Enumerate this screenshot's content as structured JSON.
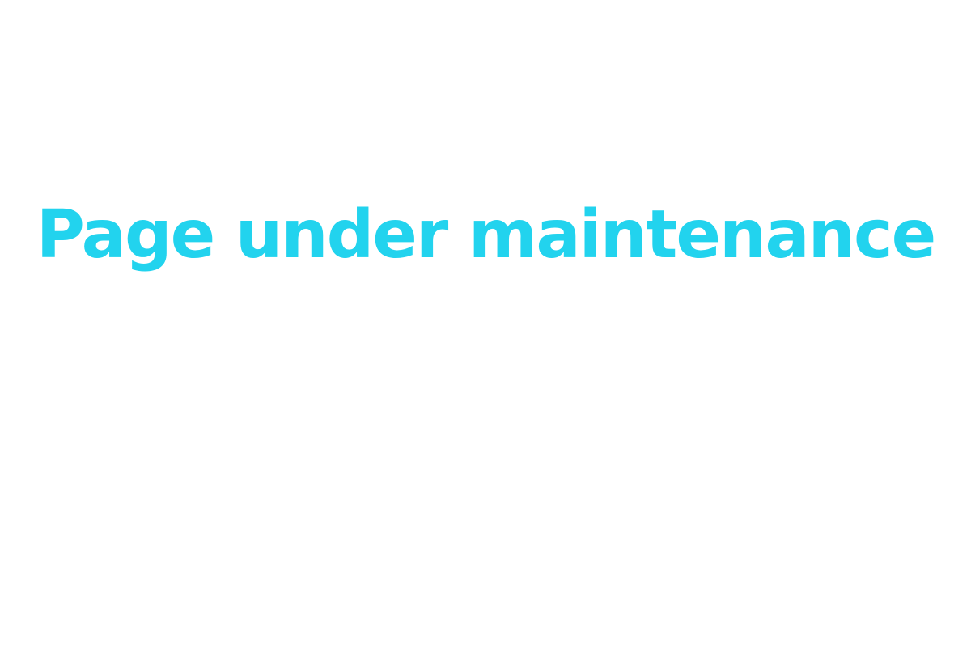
{
  "main": {
    "heading": "Page under maintenance"
  },
  "colors": {
    "heading": "#22d3ee",
    "background": "#ffffff"
  }
}
